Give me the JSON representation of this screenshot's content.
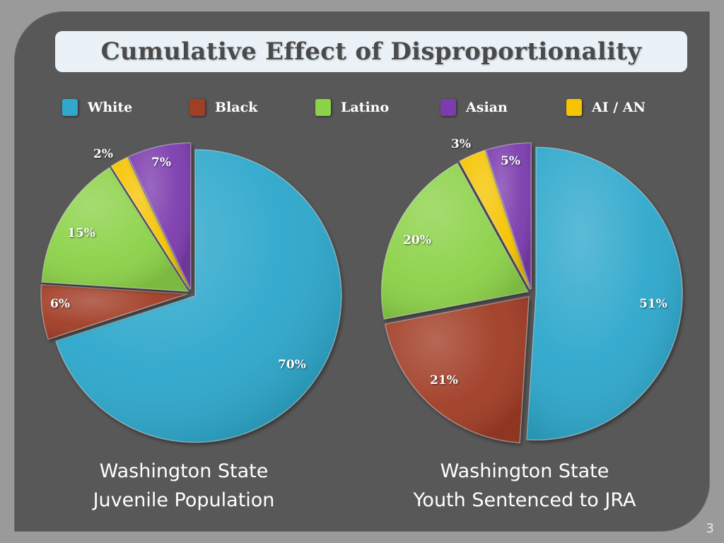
{
  "title": "Cumulative Effect of Disproportionality",
  "page_number": "3",
  "legend": [
    {
      "label": "White",
      "color": "#2fa8cc"
    },
    {
      "label": "Black",
      "color": "#a13e26"
    },
    {
      "label": "Latino",
      "color": "#8cd24a"
    },
    {
      "label": "Asian",
      "color": "#7d3cae"
    },
    {
      "label": "AI / AN",
      "color": "#f5c400"
    }
  ],
  "captions": {
    "left_line1": "Washington State",
    "left_line2": "Juvenile Population",
    "right_line1": "Washington State",
    "right_line2": "Youth Sentenced to JRA"
  },
  "chart_data": [
    {
      "type": "pie",
      "title": "Washington State Juvenile Population",
      "categories": [
        "White",
        "Black",
        "Latino",
        "AI / AN",
        "Asian"
      ],
      "values": [
        70,
        6,
        15,
        2,
        7
      ],
      "labels": [
        "70%",
        "6%",
        "15%",
        "2%",
        "7%"
      ],
      "unit": "%"
    },
    {
      "type": "pie",
      "title": "Washington State Youth Sentenced to JRA",
      "categories": [
        "White",
        "Black",
        "Latino",
        "AI / AN",
        "Asian"
      ],
      "values": [
        51,
        21,
        20,
        3,
        5
      ],
      "labels": [
        "51%",
        "21%",
        "20%",
        "3%",
        "5%"
      ],
      "unit": "%"
    }
  ]
}
